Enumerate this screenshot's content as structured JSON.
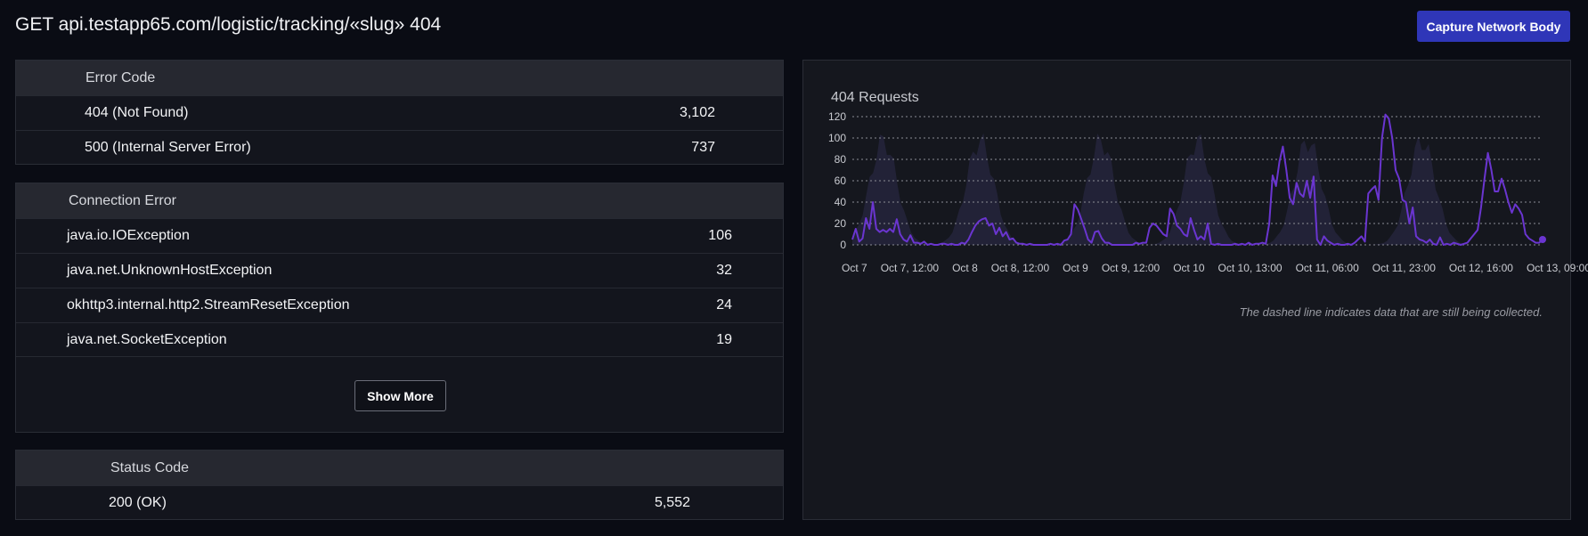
{
  "header": {
    "title": "GET api.testapp65.com/logistic/tracking/«slug» 404",
    "capture_button": "Capture Network Body"
  },
  "error_code_table": {
    "heading": "Error Code",
    "rows": [
      {
        "label": "404 (Not Found)",
        "value": "3,102"
      },
      {
        "label": "500 (Internal Server Error)",
        "value": "737"
      }
    ]
  },
  "connection_error_table": {
    "heading": "Connection Error",
    "rows": [
      {
        "label": "java.io.IOException",
        "value": "106"
      },
      {
        "label": "java.net.UnknownHostException",
        "value": "32"
      },
      {
        "label": "okhttp3.internal.http2.StreamResetException",
        "value": "24"
      },
      {
        "label": "java.net.SocketException",
        "value": "19"
      }
    ],
    "show_more_label": "Show More"
  },
  "status_code_table": {
    "heading": "Status Code",
    "rows": [
      {
        "label": "200 (OK)",
        "value": "5,552"
      }
    ]
  },
  "chart_data": {
    "type": "line",
    "title": "404 Requests",
    "note": "The dashed line indicates data that are still being collected.",
    "ylim": [
      0,
      120
    ],
    "y_ticks": [
      0,
      20,
      40,
      60,
      80,
      100,
      120
    ],
    "x_tick_labels": [
      "Oct 7",
      "Oct 7, 12:00",
      "Oct 8",
      "Oct 8, 12:00",
      "Oct 9",
      "Oct 9, 12:00",
      "Oct 10",
      "Oct 10, 13:00",
      "Oct 11, 06:00",
      "Oct 11, 23:00",
      "Oct 12, 16:00",
      "Oct 13, 09:00"
    ],
    "grid": "horizontal dotted",
    "colors": {
      "line": "#6a35d0",
      "background_area": "#23243a",
      "grid": "#8c8e96"
    },
    "series": [
      {
        "values": [
          5,
          15,
          3,
          6,
          25,
          15,
          40,
          15,
          12,
          14,
          12,
          15,
          12,
          24,
          10,
          5,
          3,
          9,
          2,
          2,
          1,
          3,
          0,
          1,
          0,
          0,
          1,
          1,
          0,
          1,
          0,
          0,
          2,
          1,
          5,
          12,
          18,
          22,
          24,
          25,
          18,
          20,
          10,
          16,
          8,
          12,
          5,
          6,
          2,
          1,
          1,
          0,
          1,
          0,
          0,
          0,
          0,
          0,
          1,
          0,
          1,
          0,
          4,
          5,
          10,
          38,
          33,
          24,
          15,
          5,
          2,
          12,
          13,
          6,
          2,
          2,
          0,
          0,
          0,
          0,
          0,
          0,
          0,
          2,
          1,
          2,
          2,
          16,
          20,
          18,
          14,
          10,
          8,
          34,
          29,
          18,
          15,
          10,
          8,
          25,
          14,
          5,
          8,
          5,
          20,
          1,
          0,
          1,
          0,
          0,
          0,
          0,
          1,
          0,
          1,
          0,
          2,
          0,
          1,
          1,
          2,
          1,
          20,
          65,
          55,
          78,
          92,
          70,
          44,
          38,
          58,
          48,
          45,
          60,
          44,
          64,
          5,
          0,
          8,
          4,
          2,
          0,
          1,
          0,
          0,
          1,
          0,
          2,
          5,
          8,
          3,
          48,
          52,
          55,
          42,
          100,
          122,
          118,
          100,
          70,
          62,
          42,
          40,
          20,
          35,
          8,
          5,
          4,
          2,
          5,
          1,
          0,
          7,
          0,
          1,
          0,
          2,
          1,
          0,
          1,
          2,
          6,
          10,
          14,
          35,
          62,
          86,
          70,
          50,
          50,
          62,
          52,
          40,
          30,
          38,
          34,
          28,
          10,
          6,
          4,
          2,
          2,
          5
        ]
      }
    ]
  }
}
